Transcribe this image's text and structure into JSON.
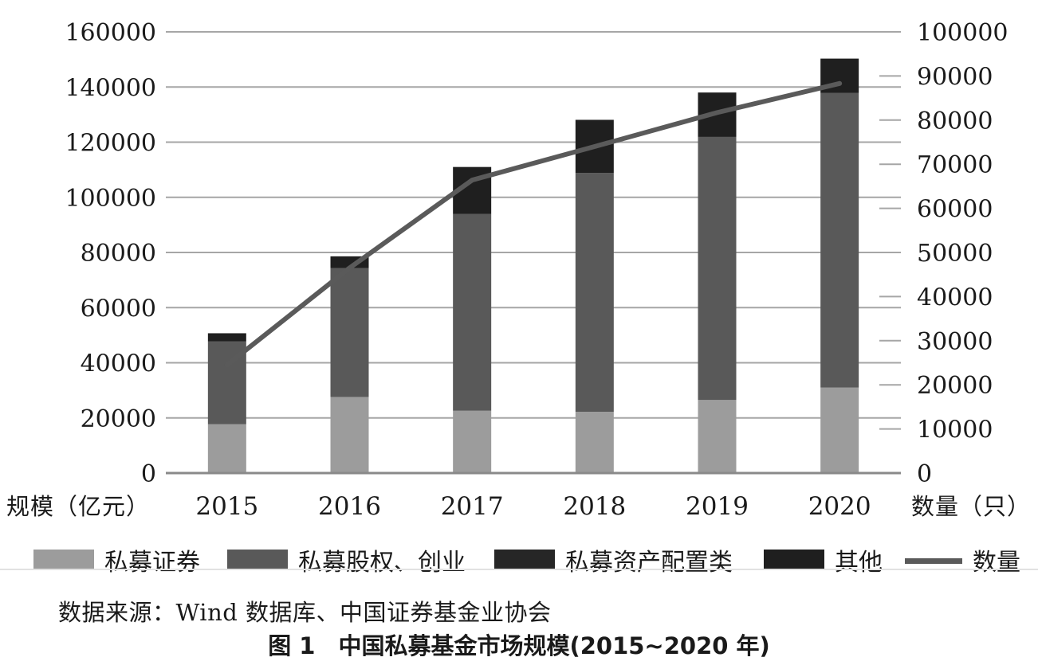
{
  "figure": {
    "source_note": "数据来源：Wind 数据库、中国证券基金业协会",
    "caption": "图 1　中国私募基金市场规模(2015~2020 年)"
  },
  "chart_data": {
    "type": "bar",
    "stacked": true,
    "title": "",
    "categories": [
      "2015",
      "2016",
      "2017",
      "2018",
      "2019",
      "2020"
    ],
    "bar_series": [
      {
        "name": "私募证券",
        "color": "#9c9c9c",
        "axis": "left",
        "values": [
          17700,
          27600,
          22600,
          22200,
          26500,
          31000
        ]
      },
      {
        "name": "私募股权、创业",
        "color": "#595959",
        "axis": "left",
        "values": [
          30100,
          46700,
          71400,
          86600,
          95400,
          106900
        ]
      },
      {
        "name": "私募资产配置类",
        "color": "#262626",
        "axis": "left",
        "values": [
          0,
          0,
          0,
          0,
          0,
          0
        ]
      },
      {
        "name": "其他",
        "color": "#1f1f1f",
        "axis": "left",
        "values": [
          2900,
          4300,
          17000,
          19300,
          16100,
          12400
        ]
      }
    ],
    "line_series": {
      "name": "数量",
      "color": "#5a5a5a",
      "axis": "right",
      "values": [
        24500,
        46500,
        66400,
        74000,
        81700,
        88300
      ]
    },
    "left_axis": {
      "label": "规模（亿元）",
      "min": 0,
      "max": 160000,
      "step": 20000
    },
    "right_axis": {
      "label": "数量（只）",
      "min": 0,
      "max": 100000,
      "step": 10000
    },
    "grid": true,
    "legend_position": "bottom",
    "style": {
      "grid_color": "#a6a6a6",
      "axis_line_color": "#8a8a8a",
      "text_color": "#1a1a1a"
    }
  }
}
